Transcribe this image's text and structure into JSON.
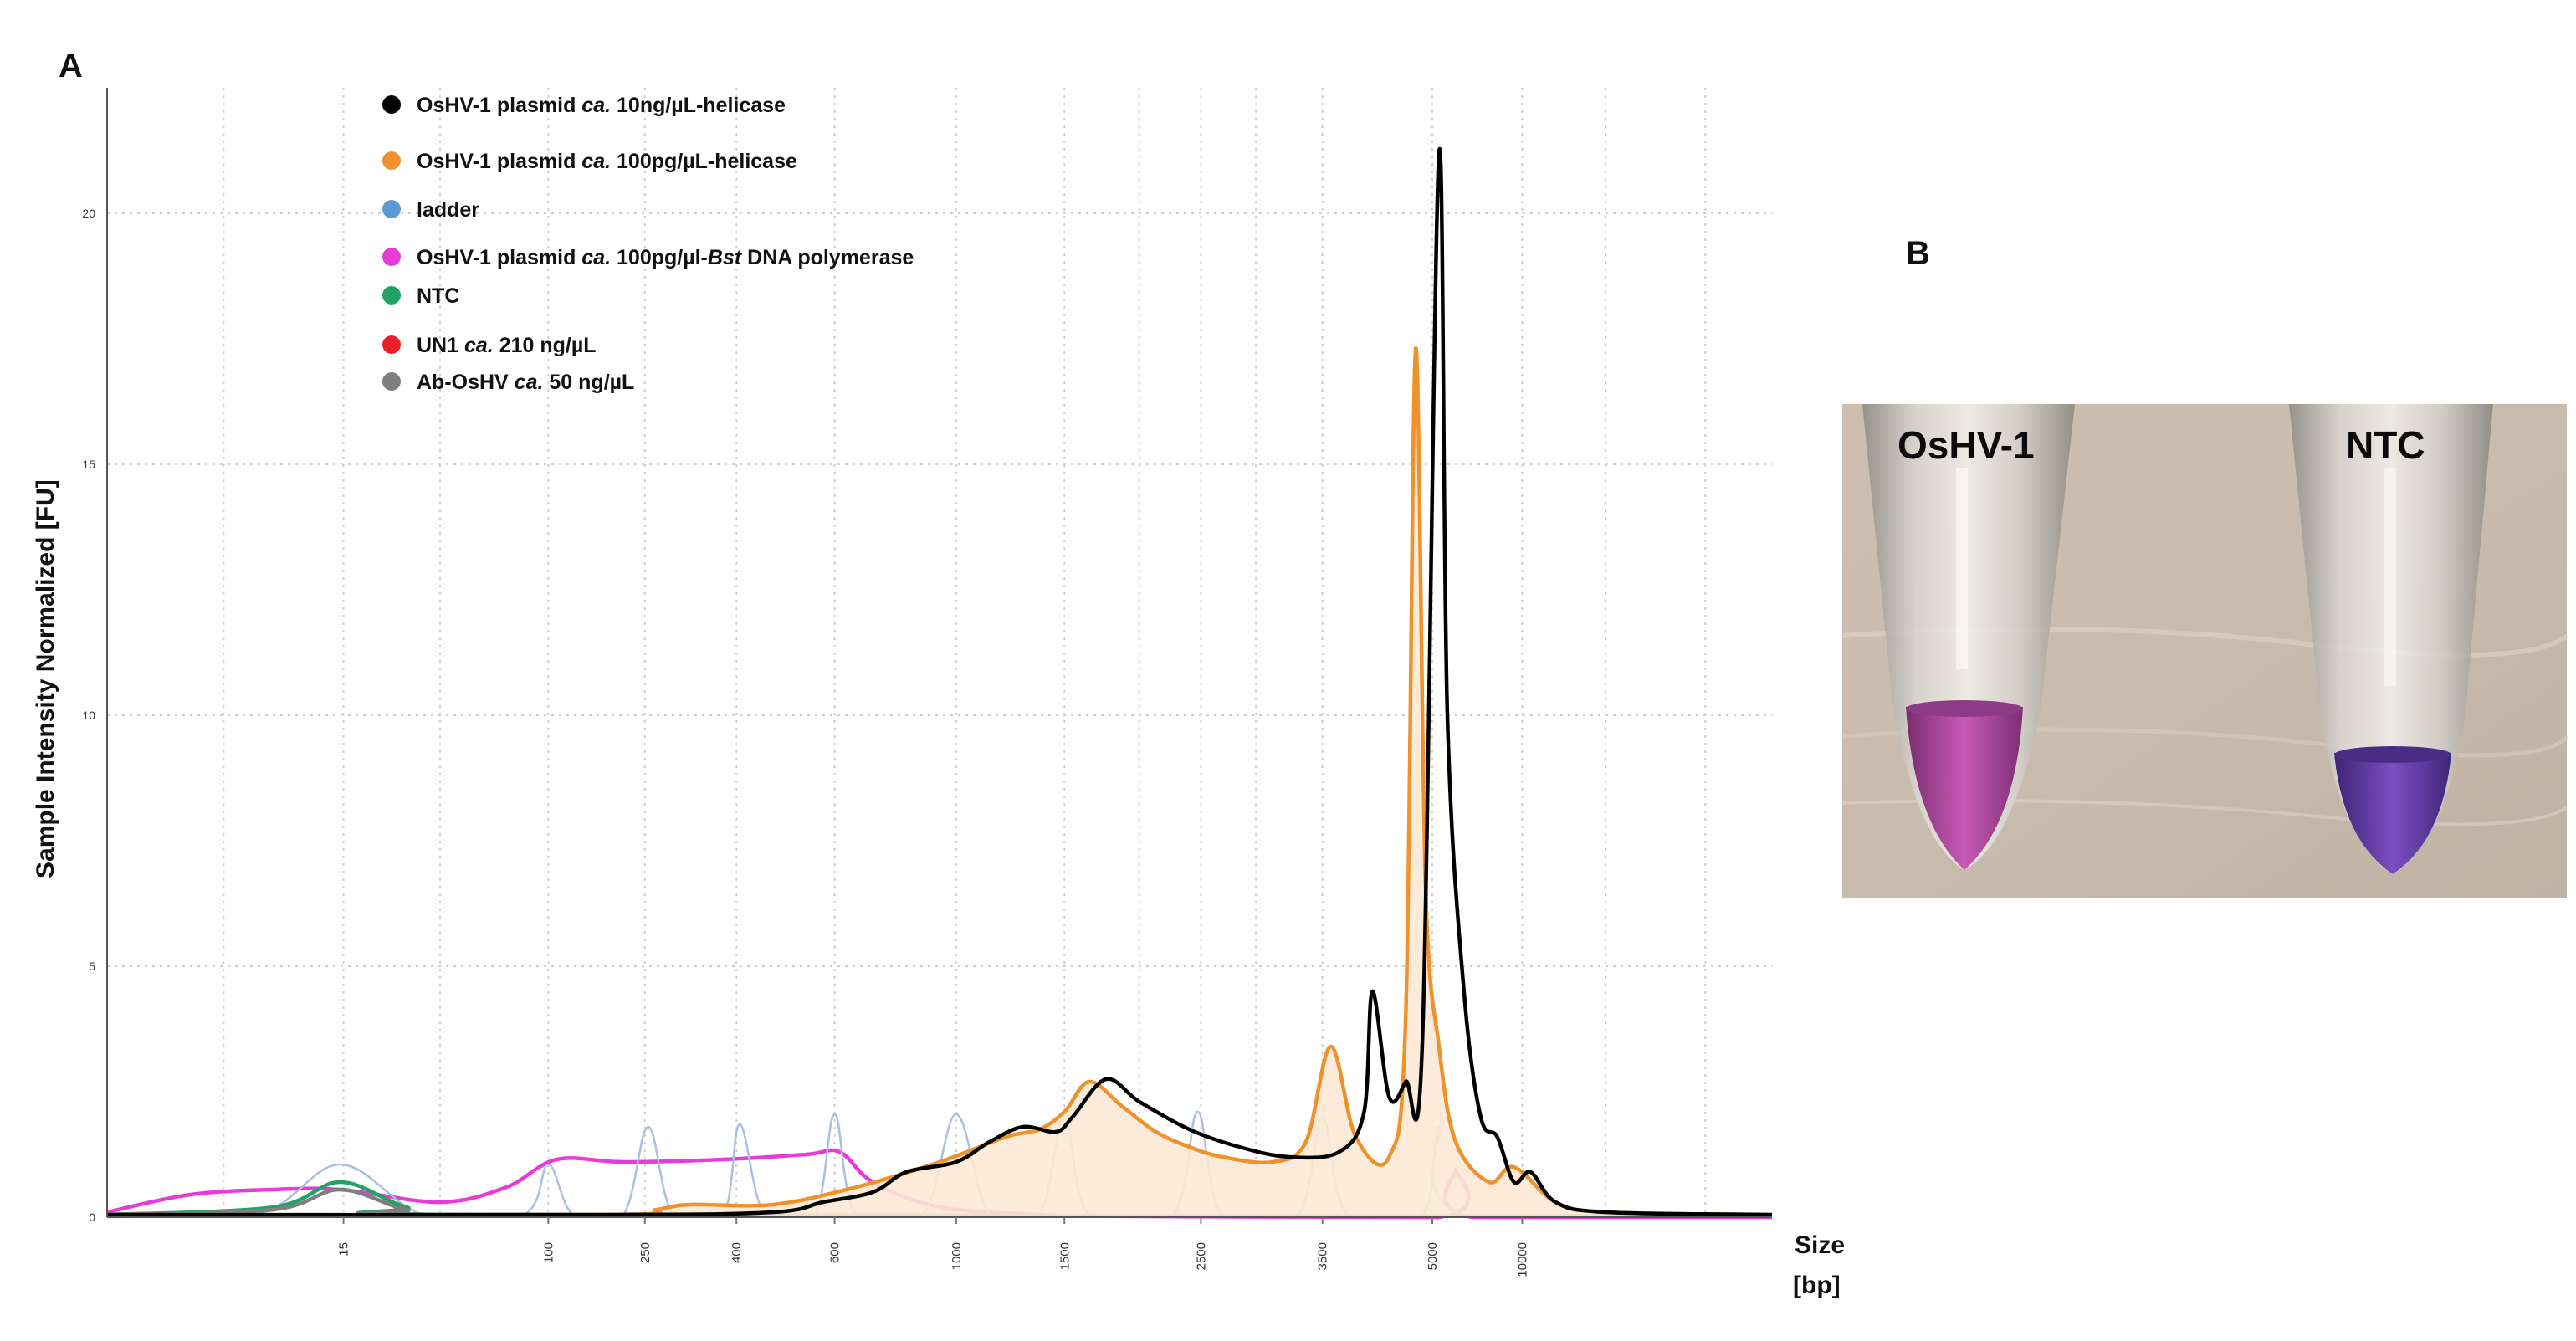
{
  "panel_labels": {
    "a": "A",
    "b": "B"
  },
  "chart_data": {
    "type": "line",
    "ylabel": "Sample Intensity Normalized [FU]",
    "xlabel_line1": "Size",
    "xlabel_line2": "[bp]",
    "ylim": [
      0,
      22.5
    ],
    "yticks": [
      "0",
      "5",
      "10",
      "15",
      "20"
    ],
    "ytick_values": [
      0,
      5,
      10,
      15,
      20
    ],
    "xticks": [
      "15",
      "100",
      "250",
      "400",
      "600",
      "1000",
      "1500",
      "2500",
      "3500",
      "5000",
      "10000"
    ],
    "x_scale": "electrophoresis size (nonlinear)",
    "grid": true,
    "legend_position": "top-left",
    "legend": [
      {
        "key": "plasmid_10ng_helicase",
        "pre": "OsHV-1 plasmid ",
        "ital": "ca.",
        "post": " 10ng/µL-helicase",
        "color": "#000000"
      },
      {
        "key": "plasmid_100pg_helicase",
        "pre": "OsHV-1 plasmid ",
        "ital": "ca.",
        "post": " 100pg/µL-helicase",
        "color": "#f0922b"
      },
      {
        "key": "ladder",
        "pre": "ladder",
        "ital": "",
        "post": "",
        "color": "#5b9bd5"
      },
      {
        "key": "plasmid_100pg_bst",
        "pre": "OsHV-1 plasmid ",
        "ital": "ca.",
        "post": " 100pg/µl-",
        "ital2": "Bst",
        "post2": " DNA polymerase",
        "color": "#e83cd8"
      },
      {
        "key": "ntc",
        "pre": "NTC",
        "ital": "",
        "post": "",
        "color": "#21a366"
      },
      {
        "key": "un1",
        "pre": "UN1 ",
        "ital": "ca.",
        "post": " 210 ng/µL",
        "color": "#e8202a"
      },
      {
        "key": "ab_oshv",
        "pre": "Ab-OsHV ",
        "ital": "ca.",
        "post": " 50 ng/µL",
        "color": "#7f7f7f"
      }
    ],
    "series": [
      {
        "key": "plasmid_100pg_bst",
        "color": "#e83cd8",
        "points": [
          [
            0,
            0.1
          ],
          [
            0.05,
            0.45
          ],
          [
            0.1,
            0.55
          ],
          [
            0.14,
            0.55
          ],
          [
            0.2,
            0.3
          ],
          [
            0.24,
            0.6
          ],
          [
            0.27,
            1.15
          ],
          [
            0.31,
            1.1
          ],
          [
            0.37,
            1.15
          ],
          [
            0.42,
            1.25
          ],
          [
            0.44,
            1.3
          ],
          [
            0.46,
            0.7
          ],
          [
            0.5,
            0.2
          ],
          [
            0.56,
            0.05
          ],
          [
            0.6,
            0.02
          ],
          [
            0.8,
            0.0
          ],
          [
            0.81,
            0.95
          ],
          [
            0.82,
            0.0
          ],
          [
            1,
            0.0
          ]
        ]
      },
      {
        "key": "ladder",
        "color": "#a9bfe3",
        "points": [
          [
            0,
            0
          ],
          [
            0.09,
            0.05
          ],
          [
            0.14,
            1.05
          ],
          [
            0.19,
            0.05
          ],
          [
            0.25,
            0.05
          ],
          [
            0.265,
            1.05
          ],
          [
            0.28,
            0.05
          ],
          [
            0.31,
            0.05
          ],
          [
            0.325,
            1.8
          ],
          [
            0.34,
            0.05
          ],
          [
            0.37,
            0.05
          ],
          [
            0.38,
            1.85
          ],
          [
            0.395,
            0.05
          ],
          [
            0.425,
            0.05
          ],
          [
            0.437,
            2.05
          ],
          [
            0.45,
            0.05
          ],
          [
            0.49,
            0.05
          ],
          [
            0.51,
            2.05
          ],
          [
            0.53,
            0.05
          ],
          [
            0.56,
            0.05
          ],
          [
            0.575,
            2.0
          ],
          [
            0.59,
            0.05
          ],
          [
            0.64,
            0.05
          ],
          [
            0.655,
            2.1
          ],
          [
            0.67,
            0.05
          ],
          [
            0.715,
            0.05
          ],
          [
            0.73,
            2.0
          ],
          [
            0.745,
            0.05
          ],
          [
            0.79,
            0.05
          ],
          [
            0.8,
            1.8
          ],
          [
            0.815,
            0.05
          ],
          [
            1,
            0.05
          ]
        ]
      },
      {
        "key": "ntc",
        "color": "#21a366",
        "points": [
          [
            0,
            0.05
          ],
          [
            0.1,
            0.2
          ],
          [
            0.14,
            0.7
          ],
          [
            0.18,
            0.2
          ],
          [
            0.22,
            0.05
          ],
          [
            1,
            0.02
          ]
        ]
      },
      {
        "key": "ab_oshv",
        "color": "#7f7f7f",
        "points": [
          [
            0,
            0.05
          ],
          [
            0.1,
            0.15
          ],
          [
            0.14,
            0.55
          ],
          [
            0.18,
            0.15
          ],
          [
            0.22,
            0.05
          ],
          [
            1,
            0.02
          ]
        ]
      },
      {
        "key": "plasmid_100pg_helicase",
        "color": "#f0922b",
        "fill": "#fbe9d4",
        "points": [
          [
            0,
            0.05
          ],
          [
            0.3,
            0.05
          ],
          [
            0.33,
            0.15
          ],
          [
            0.35,
            0.25
          ],
          [
            0.4,
            0.25
          ],
          [
            0.45,
            0.6
          ],
          [
            0.5,
            1.1
          ],
          [
            0.54,
            1.6
          ],
          [
            0.56,
            1.75
          ],
          [
            0.575,
            2.1
          ],
          [
            0.59,
            2.7
          ],
          [
            0.61,
            2.2
          ],
          [
            0.63,
            1.7
          ],
          [
            0.65,
            1.4
          ],
          [
            0.67,
            1.2
          ],
          [
            0.7,
            1.1
          ],
          [
            0.72,
            1.5
          ],
          [
            0.735,
            3.4
          ],
          [
            0.75,
            1.6
          ],
          [
            0.77,
            1.2
          ],
          [
            0.78,
            4.0
          ],
          [
            0.786,
            17.3
          ],
          [
            0.792,
            6.5
          ],
          [
            0.8,
            3.4
          ],
          [
            0.81,
            1.5
          ],
          [
            0.83,
            0.7
          ],
          [
            0.845,
            1.0
          ],
          [
            0.87,
            0.3
          ],
          [
            0.9,
            0.1
          ],
          [
            1,
            0.05
          ]
        ]
      },
      {
        "key": "plasmid_10ng_helicase",
        "color": "#000000",
        "points": [
          [
            0,
            0.05
          ],
          [
            0.3,
            0.05
          ],
          [
            0.4,
            0.1
          ],
          [
            0.43,
            0.3
          ],
          [
            0.46,
            0.5
          ],
          [
            0.48,
            0.9
          ],
          [
            0.51,
            1.1
          ],
          [
            0.53,
            1.5
          ],
          [
            0.55,
            1.8
          ],
          [
            0.57,
            1.7
          ],
          [
            0.58,
            2.0
          ],
          [
            0.6,
            2.75
          ],
          [
            0.62,
            2.3
          ],
          [
            0.65,
            1.75
          ],
          [
            0.68,
            1.4
          ],
          [
            0.71,
            1.2
          ],
          [
            0.74,
            1.3
          ],
          [
            0.755,
            2.1
          ],
          [
            0.76,
            4.5
          ],
          [
            0.77,
            2.4
          ],
          [
            0.78,
            2.7
          ],
          [
            0.79,
            3.5
          ],
          [
            0.8,
            21.2
          ],
          [
            0.805,
            10.0
          ],
          [
            0.815,
            4.5
          ],
          [
            0.825,
            2.0
          ],
          [
            0.835,
            1.6
          ],
          [
            0.845,
            0.7
          ],
          [
            0.855,
            0.9
          ],
          [
            0.87,
            0.3
          ],
          [
            0.9,
            0.1
          ],
          [
            1,
            0.05
          ]
        ]
      }
    ]
  },
  "photo_panel": {
    "left_tube_label": "OsHV-1",
    "right_tube_label": "NTC",
    "left_tube_color": "#b8449f",
    "right_tube_color": "#6a3ba8"
  }
}
